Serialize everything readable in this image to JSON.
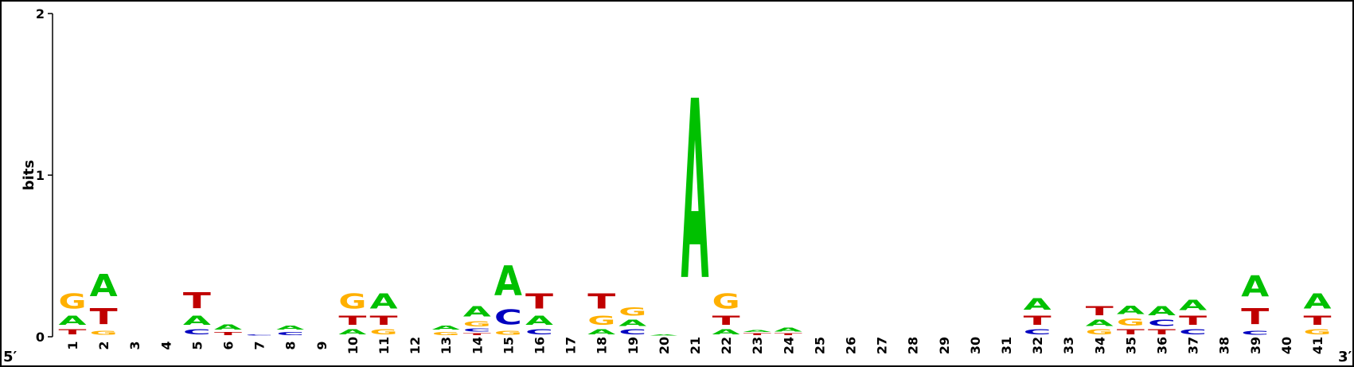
{
  "chart_data": {
    "type": "sequence-logo",
    "title": "",
    "ylabel": "bits",
    "yticks": [
      "0",
      "1",
      "2"
    ],
    "ylim": [
      0,
      2
    ],
    "start_label": "5′",
    "end_label": "3′",
    "positions": [
      "1",
      "2",
      "3",
      "4",
      "5",
      "6",
      "7",
      "8",
      "9",
      "10",
      "11",
      "12",
      "13",
      "14",
      "15",
      "16",
      "17",
      "18",
      "19",
      "20",
      "21",
      "22",
      "23",
      "24",
      "25",
      "26",
      "27",
      "28",
      "29",
      "30",
      "31",
      "32",
      "33",
      "34",
      "35",
      "36",
      "37",
      "38",
      "39",
      "40",
      "41"
    ],
    "colors": {
      "A": "#00c000",
      "C": "#0000c0",
      "G": "#ffb000",
      "T": "#c00000"
    },
    "stacks": [
      [
        [
          "T",
          0.05
        ],
        [
          "A",
          0.09
        ],
        [
          "G",
          0.15
        ]
      ],
      [
        [
          "G",
          0.04
        ],
        [
          "T",
          0.16
        ],
        [
          "A",
          0.22
        ]
      ],
      [],
      [],
      [
        [
          "C",
          0.05
        ],
        [
          "A",
          0.09
        ],
        [
          "T",
          0.16
        ]
      ],
      [
        [
          "T",
          0.03
        ],
        [
          "A",
          0.05
        ]
      ],
      [
        [
          "C",
          0.01
        ]
      ],
      [
        [
          "C",
          0.03
        ],
        [
          "A",
          0.04
        ]
      ],
      [],
      [
        [
          "A",
          0.05
        ],
        [
          "T",
          0.09
        ],
        [
          "G",
          0.15
        ]
      ],
      [
        [
          "G",
          0.05
        ],
        [
          "T",
          0.09
        ],
        [
          "A",
          0.15
        ]
      ],
      [],
      [
        [
          "G",
          0.03
        ],
        [
          "A",
          0.04
        ]
      ],
      [
        [
          "T",
          0.02
        ],
        [
          "C",
          0.03
        ],
        [
          "G",
          0.05
        ],
        [
          "A",
          0.1
        ]
      ],
      [
        [
          "G",
          0.04
        ],
        [
          "C",
          0.15
        ],
        [
          "A",
          0.3
        ]
      ],
      [
        [
          "C",
          0.05
        ],
        [
          "A",
          0.09
        ],
        [
          "T",
          0.15
        ]
      ],
      [],
      [
        [
          "A",
          0.05
        ],
        [
          "G",
          0.09
        ],
        [
          "T",
          0.15
        ]
      ],
      [
        [
          "C",
          0.05
        ],
        [
          "A",
          0.06
        ],
        [
          "G",
          0.08
        ]
      ],
      [
        [
          "A",
          0.01
        ]
      ],
      [
        [
          "A",
          1.78
        ]
      ],
      [
        [
          "A",
          0.05
        ],
        [
          "T",
          0.09
        ],
        [
          "G",
          0.15
        ]
      ],
      [
        [
          "T",
          0.02
        ],
        [
          "A",
          0.02
        ]
      ],
      [
        [
          "T",
          0.02
        ],
        [
          "A",
          0.04
        ]
      ],
      [],
      [],
      [],
      [],
      [],
      [],
      [],
      [
        [
          "C",
          0.05
        ],
        [
          "T",
          0.09
        ],
        [
          "A",
          0.11
        ]
      ],
      [],
      [
        [
          "G",
          0.05
        ],
        [
          "A",
          0.06
        ],
        [
          "T",
          0.09
        ]
      ],
      [
        [
          "T",
          0.05
        ],
        [
          "G",
          0.07
        ],
        [
          "A",
          0.08
        ]
      ],
      [
        [
          "T",
          0.05
        ],
        [
          "C",
          0.06
        ],
        [
          "A",
          0.09
        ]
      ],
      [
        [
          "C",
          0.05
        ],
        [
          "T",
          0.09
        ],
        [
          "A",
          0.1
        ]
      ],
      [],
      [
        [
          "C",
          0.04
        ],
        [
          "T",
          0.16
        ],
        [
          "A",
          0.21
        ]
      ],
      [],
      [
        [
          "G",
          0.05
        ],
        [
          "T",
          0.09
        ],
        [
          "A",
          0.15
        ]
      ]
    ]
  }
}
